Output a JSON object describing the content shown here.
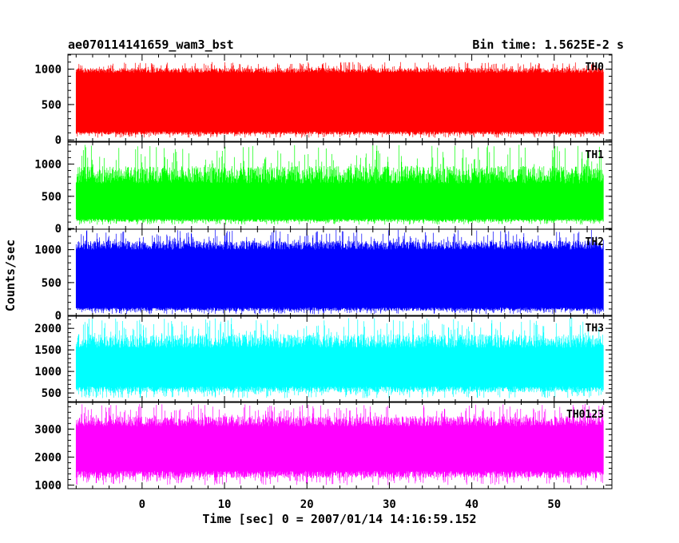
{
  "header": {
    "title": "ae070114141659_wam3_bst",
    "bin_time": "Bin time: 1.5625E-2 s"
  },
  "chart_data": {
    "type": "line",
    "xlabel": "Time [sec] 0 = 2007/01/14 14:16:59.152",
    "ylabel": "Counts/sec",
    "xlim": [
      -9,
      57
    ],
    "x_ticks": [
      0,
      10,
      20,
      30,
      40,
      50
    ],
    "x_tick_labels": [
      "0",
      "10",
      "20",
      "30",
      "40",
      "50"
    ],
    "data_x_range": [
      -8,
      56
    ],
    "series": [
      {
        "name": "TH0",
        "color": "#ff0000",
        "ylim": [
          -20,
          1210
        ],
        "y_ticks": [
          0,
          500,
          1000
        ],
        "y_tick_labels": [
          "0",
          "500",
          "1000"
        ],
        "band": {
          "low": 120,
          "high": 950,
          "min": 30,
          "max": 1100
        }
      },
      {
        "name": "TH1",
        "color": "#00ff00",
        "ylim": [
          -10,
          1340
        ],
        "y_ticks": [
          0,
          500,
          1000
        ],
        "y_tick_labels": [
          "0",
          "500",
          "1000"
        ],
        "band": {
          "low": 150,
          "high": 700,
          "min": 60,
          "max": 1300
        }
      },
      {
        "name": "TH2",
        "color": "#0000ff",
        "ylim": [
          -10,
          1310
        ],
        "y_ticks": [
          0,
          500,
          1000
        ],
        "y_tick_labels": [
          "0",
          "500",
          "1000"
        ],
        "band": {
          "low": 120,
          "high": 1000,
          "min": 20,
          "max": 1300
        }
      },
      {
        "name": "TH3",
        "color": "#00ffff",
        "ylim": [
          280,
          2300
        ],
        "y_ticks": [
          500,
          1000,
          1500,
          2000
        ],
        "y_tick_labels": [
          "500",
          "1000",
          "1500",
          "2000"
        ],
        "band": {
          "low": 650,
          "high": 1550,
          "min": 380,
          "max": 2250
        }
      },
      {
        "name": "TH0123",
        "color": "#ff00ff",
        "ylim": [
          870,
          3980
        ],
        "y_ticks": [
          1000,
          2000,
          3000
        ],
        "y_tick_labels": [
          "1000",
          "2000",
          "3000"
        ],
        "band": {
          "low": 1500,
          "high": 3100,
          "min": 1000,
          "max": 3900
        }
      }
    ]
  }
}
